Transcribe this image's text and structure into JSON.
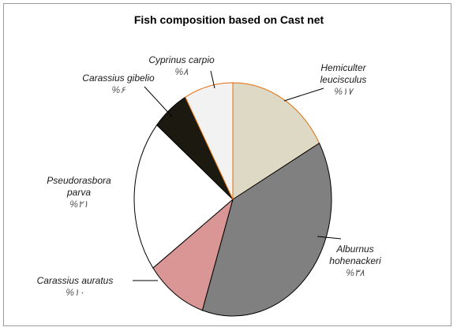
{
  "chart_data": {
    "type": "pie",
    "title": "Fish composition based on Cast net",
    "slices": [
      {
        "name": "Hemiculter leucisculus",
        "label_lines": [
          "Hemiculter",
          "leucisculus"
        ],
        "pct_label": "%۱۷",
        "value": 17,
        "color": "#ddd9c4"
      },
      {
        "name": "Alburnus hohenackeri",
        "label_lines": [
          "Alburnus",
          "hohenackeri"
        ],
        "pct_label": "%۳۸",
        "value": 38,
        "color": "#808080"
      },
      {
        "name": "Carassius auratus",
        "label_lines": [
          "Carassius auratus"
        ],
        "pct_label": "%۱۰",
        "value": 10,
        "color": "#d99694"
      },
      {
        "name": "Pseudorasbora parva",
        "label_lines": [
          "Pseudorasbora",
          "parva"
        ],
        "pct_label": "%۲۱",
        "value": 21,
        "color": "#ffffff"
      },
      {
        "name": "Carassius gibelio",
        "label_lines": [
          "Carassius gibelio"
        ],
        "pct_label": "%۶",
        "value": 6,
        "color": "#1c1a10"
      },
      {
        "name": "Cyprinus carpio",
        "label_lines": [
          "Cyprinus carpio"
        ],
        "pct_label": "%۸",
        "value": 8,
        "color": "#f2f2f2"
      }
    ],
    "start_angle_deg": 0,
    "direction": "clockwise",
    "legend": "none"
  }
}
